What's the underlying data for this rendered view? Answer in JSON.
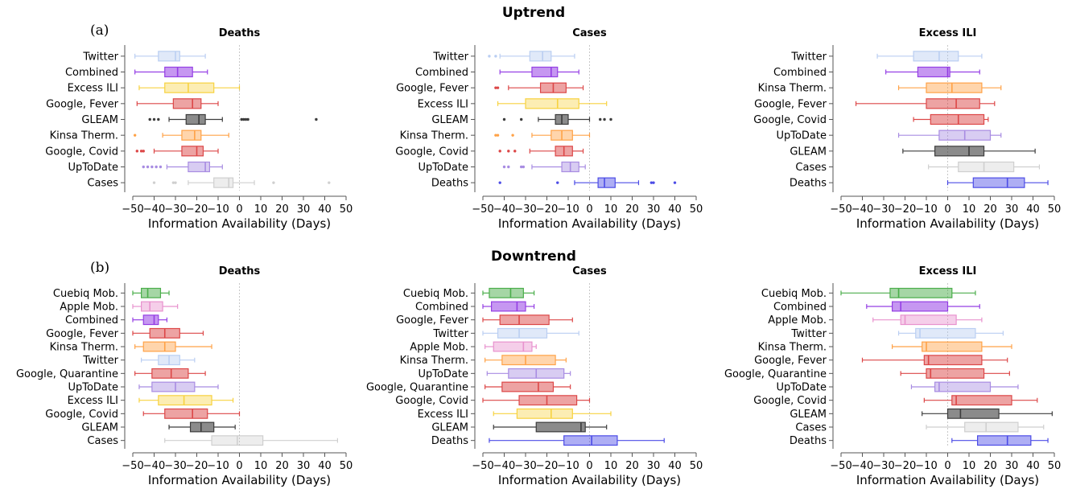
{
  "sections": [
    {
      "title": "Uptrend",
      "panel_label": "(a)"
    },
    {
      "title": "Downtrend",
      "panel_label": "(b)"
    }
  ],
  "chart_data": [
    {
      "type": "boxplot",
      "section": 0,
      "title": "Deaths",
      "xlabel": "Information Availability (Days)",
      "xlim": [
        -50,
        50
      ],
      "xticks": [
        -50,
        -40,
        -30,
        -20,
        -10,
        0,
        10,
        20,
        30,
        40,
        50
      ],
      "categories": [
        {
          "name": "Twitter",
          "color": "#a9c3ef",
          "alpha": 0.45,
          "whislo": -49,
          "q1": -38,
          "med": -30,
          "q3": -28,
          "whishi": -16,
          "outliers": []
        },
        {
          "name": "Combined",
          "color": "#8a2be2",
          "alpha": 0.55,
          "whislo": -49,
          "q1": -35,
          "med": -29,
          "q3": -22,
          "whishi": -15,
          "outliers": []
        },
        {
          "name": "Excess ILI",
          "color": "#f5c400",
          "alpha": 0.4,
          "whislo": -47,
          "q1": -35,
          "med": -24,
          "q3": -12,
          "whishi": 0,
          "outliers": []
        },
        {
          "name": "Google, Fever",
          "color": "#d62728",
          "alpha": 0.5,
          "whislo": -48,
          "q1": -31,
          "med": -22,
          "q3": -18,
          "whishi": -10,
          "outliers": []
        },
        {
          "name": "GLEAM",
          "color": "#333333",
          "alpha": 0.6,
          "whislo": -33,
          "q1": -25,
          "med": -19,
          "q3": -16,
          "whishi": -8,
          "outliers": [
            -42,
            -40,
            -38,
            1,
            2,
            3,
            4,
            36
          ]
        },
        {
          "name": "Kinsa Therm.",
          "color": "#ff8c1a",
          "alpha": 0.45,
          "whislo": -36,
          "q1": -27,
          "med": -21,
          "q3": -18,
          "whishi": -5,
          "outliers": [
            -49
          ]
        },
        {
          "name": "Google, Covid",
          "color": "#d62728",
          "alpha": 0.5,
          "whislo": -40,
          "q1": -27,
          "med": -20,
          "q3": -17,
          "whishi": -10,
          "outliers": [
            -48,
            -46,
            -45
          ]
        },
        {
          "name": "UpToDate",
          "color": "#9370db",
          "alpha": 0.45,
          "whislo": -34,
          "q1": -24,
          "med": -16,
          "q3": -14,
          "whishi": -8,
          "outliers": [
            -45,
            -43,
            -41,
            -39,
            -37
          ]
        },
        {
          "name": "Cases",
          "color": "#c0c0c0",
          "alpha": 0.4,
          "whislo": -24,
          "q1": -12,
          "med": -5,
          "q3": -3,
          "whishi": 7,
          "outliers": [
            -40,
            -31,
            -30,
            16,
            42
          ]
        }
      ]
    },
    {
      "type": "boxplot",
      "section": 0,
      "title": "Cases",
      "xlabel": "Information Availability (Days)",
      "xlim": [
        -50,
        50
      ],
      "xticks": [
        -50,
        -40,
        -30,
        -20,
        -10,
        0,
        10,
        20,
        30,
        40,
        50
      ],
      "categories": [
        {
          "name": "Twitter",
          "color": "#a9c3ef",
          "alpha": 0.45,
          "whislo": -42,
          "q1": -28,
          "med": -22,
          "q3": -18,
          "whishi": -7,
          "outliers": [
            -47,
            -44
          ]
        },
        {
          "name": "Combined",
          "color": "#8a2be2",
          "alpha": 0.55,
          "whislo": -42,
          "q1": -27,
          "med": -18,
          "q3": -15,
          "whishi": -5,
          "outliers": []
        },
        {
          "name": "Google, Fever",
          "color": "#d62728",
          "alpha": 0.5,
          "whislo": -38,
          "q1": -23,
          "med": -17,
          "q3": -11,
          "whishi": -3,
          "outliers": [
            -44,
            -43
          ]
        },
        {
          "name": "Excess ILI",
          "color": "#f5c400",
          "alpha": 0.4,
          "whislo": -43,
          "q1": -30,
          "med": -15,
          "q3": -5,
          "whishi": 8,
          "outliers": []
        },
        {
          "name": "GLEAM",
          "color": "#333333",
          "alpha": 0.6,
          "whislo": -24,
          "q1": -16,
          "med": -13,
          "q3": -10,
          "whishi": 0,
          "outliers": [
            -40,
            -32,
            5,
            7,
            10
          ]
        },
        {
          "name": "Kinsa Therm.",
          "color": "#ff8c1a",
          "alpha": 0.45,
          "whislo": -27,
          "q1": -18,
          "med": -13,
          "q3": -8,
          "whishi": 0,
          "outliers": [
            -44,
            -43,
            -36
          ]
        },
        {
          "name": "Google, Covid",
          "color": "#d62728",
          "alpha": 0.5,
          "whislo": -28,
          "q1": -16,
          "med": -12,
          "q3": -8,
          "whishi": -3,
          "outliers": [
            -42,
            -38,
            -35
          ]
        },
        {
          "name": "UpToDate",
          "color": "#9370db",
          "alpha": 0.45,
          "whislo": -27,
          "q1": -13,
          "med": -9,
          "q3": -5,
          "whishi": -2,
          "outliers": [
            -40,
            -38,
            -32,
            -31
          ]
        },
        {
          "name": "Deaths",
          "color": "#2020e0",
          "alpha": 0.45,
          "whislo": -7,
          "q1": 4,
          "med": 7,
          "q3": 12,
          "whishi": 23,
          "outliers": [
            -42,
            -15,
            29,
            30,
            40
          ]
        }
      ]
    },
    {
      "type": "boxplot",
      "section": 0,
      "title": "Excess ILI",
      "xlabel": "Information Availability (Days)",
      "xlim": [
        -50,
        50
      ],
      "xticks": [
        -50,
        -40,
        -30,
        -20,
        -10,
        0,
        10,
        20,
        30,
        40,
        50
      ],
      "categories": [
        {
          "name": "Twitter",
          "color": "#a9c3ef",
          "alpha": 0.45,
          "whislo": -33,
          "q1": -16,
          "med": -4,
          "q3": 5,
          "whishi": 16,
          "outliers": []
        },
        {
          "name": "Combined",
          "color": "#8a2be2",
          "alpha": 0.55,
          "whislo": -29,
          "q1": -14,
          "med": 0,
          "q3": 1,
          "whishi": 15,
          "outliers": []
        },
        {
          "name": "Kinsa Therm.",
          "color": "#ff8c1a",
          "alpha": 0.45,
          "whislo": -23,
          "q1": -10,
          "med": 2,
          "q3": 16,
          "whishi": 25,
          "outliers": []
        },
        {
          "name": "Google, Fever",
          "color": "#d62728",
          "alpha": 0.5,
          "whislo": -43,
          "q1": -10,
          "med": 4,
          "q3": 15,
          "whishi": 22,
          "outliers": []
        },
        {
          "name": "Google, Covid",
          "color": "#d62728",
          "alpha": 0.5,
          "whislo": -16,
          "q1": -8,
          "med": 5,
          "q3": 17,
          "whishi": 19,
          "outliers": []
        },
        {
          "name": "UpToDate",
          "color": "#9370db",
          "alpha": 0.45,
          "whislo": -23,
          "q1": -4,
          "med": 8,
          "q3": 20,
          "whishi": 25,
          "outliers": []
        },
        {
          "name": "GLEAM",
          "color": "#333333",
          "alpha": 0.6,
          "whislo": -21,
          "q1": -6,
          "med": 10,
          "q3": 17,
          "whishi": 41,
          "outliers": []
        },
        {
          "name": "Cases",
          "color": "#c0c0c0",
          "alpha": 0.4,
          "whislo": -9,
          "q1": 5,
          "med": 17,
          "q3": 31,
          "whishi": 43,
          "outliers": []
        },
        {
          "name": "Deaths",
          "color": "#2020e0",
          "alpha": 0.45,
          "whislo": 0,
          "q1": 12,
          "med": 28,
          "q3": 36,
          "whishi": 47,
          "outliers": []
        }
      ]
    },
    {
      "type": "boxplot",
      "section": 1,
      "title": "Deaths",
      "xlabel": "Information Availability (Days)",
      "xlim": [
        -50,
        50
      ],
      "xticks": [
        -50,
        -40,
        -30,
        -20,
        -10,
        0,
        10,
        20,
        30,
        40,
        50
      ],
      "categories": [
        {
          "name": "Cuebiq Mob.",
          "color": "#2ca02c",
          "alpha": 0.5,
          "whislo": -50,
          "q1": -46,
          "med": -43,
          "q3": -37,
          "whishi": -33,
          "outliers": []
        },
        {
          "name": "Apple Mob.",
          "color": "#e377c2",
          "alpha": 0.45,
          "whislo": -50,
          "q1": -46,
          "med": -42,
          "q3": -36,
          "whishi": -29,
          "outliers": []
        },
        {
          "name": "Combined",
          "color": "#8a2be2",
          "alpha": 0.55,
          "whislo": -50,
          "q1": -45,
          "med": -40,
          "q3": -38,
          "whishi": -34,
          "outliers": []
        },
        {
          "name": "Google, Fever",
          "color": "#d62728",
          "alpha": 0.5,
          "whislo": -50,
          "q1": -42,
          "med": -35,
          "q3": -28,
          "whishi": -17,
          "outliers": []
        },
        {
          "name": "Kinsa Therm.",
          "color": "#ff8c1a",
          "alpha": 0.45,
          "whislo": -49,
          "q1": -45,
          "med": -35,
          "q3": -30,
          "whishi": -13,
          "outliers": []
        },
        {
          "name": "Twitter",
          "color": "#a9c3ef",
          "alpha": 0.45,
          "whislo": -46,
          "q1": -38,
          "med": -33,
          "q3": -28,
          "whishi": -21,
          "outliers": []
        },
        {
          "name": "Google, Quarantine",
          "color": "#d62728",
          "alpha": 0.5,
          "whislo": -49,
          "q1": -41,
          "med": -32,
          "q3": -24,
          "whishi": -16,
          "outliers": []
        },
        {
          "name": "UpToDate",
          "color": "#9370db",
          "alpha": 0.45,
          "whislo": -47,
          "q1": -41,
          "med": -30,
          "q3": -21,
          "whishi": -10,
          "outliers": []
        },
        {
          "name": "Excess ILI",
          "color": "#f5c400",
          "alpha": 0.4,
          "whislo": -47,
          "q1": -38,
          "med": -26,
          "q3": -13,
          "whishi": -3,
          "outliers": []
        },
        {
          "name": "Google, Covid",
          "color": "#d62728",
          "alpha": 0.5,
          "whislo": -45,
          "q1": -35,
          "med": -22,
          "q3": -15,
          "whishi": 0,
          "outliers": []
        },
        {
          "name": "GLEAM",
          "color": "#333333",
          "alpha": 0.6,
          "whislo": -33,
          "q1": -23,
          "med": -18,
          "q3": -12,
          "whishi": -2,
          "outliers": []
        },
        {
          "name": "Cases",
          "color": "#c0c0c0",
          "alpha": 0.4,
          "whislo": -35,
          "q1": -13,
          "med": -1,
          "q3": 11,
          "whishi": 46,
          "outliers": []
        }
      ]
    },
    {
      "type": "boxplot",
      "section": 1,
      "title": "Cases",
      "xlabel": "Information Availability (Days)",
      "xlim": [
        -50,
        50
      ],
      "xticks": [
        -50,
        -40,
        -30,
        -20,
        -10,
        0,
        10,
        20,
        30,
        40,
        50
      ],
      "categories": [
        {
          "name": "Cuebiq Mob.",
          "color": "#2ca02c",
          "alpha": 0.5,
          "whislo": -50,
          "q1": -47,
          "med": -37,
          "q3": -31,
          "whishi": -26,
          "outliers": []
        },
        {
          "name": "Combined",
          "color": "#8a2be2",
          "alpha": 0.55,
          "whislo": -50,
          "q1": -46,
          "med": -34,
          "q3": -30,
          "whishi": -26,
          "outliers": []
        },
        {
          "name": "Google, Fever",
          "color": "#d62728",
          "alpha": 0.5,
          "whislo": -50,
          "q1": -42,
          "med": -33,
          "q3": -19,
          "whishi": -8,
          "outliers": []
        },
        {
          "name": "Twitter",
          "color": "#a9c3ef",
          "alpha": 0.45,
          "whislo": -50,
          "q1": -43,
          "med": -33,
          "q3": -20,
          "whishi": -5,
          "outliers": []
        },
        {
          "name": "Apple Mob.",
          "color": "#e377c2",
          "alpha": 0.45,
          "whislo": -49,
          "q1": -45,
          "med": -31,
          "q3": -27,
          "whishi": -25,
          "outliers": []
        },
        {
          "name": "Kinsa Therm.",
          "color": "#ff8c1a",
          "alpha": 0.45,
          "whislo": -49,
          "q1": -41,
          "med": -30,
          "q3": -16,
          "whishi": -11,
          "outliers": []
        },
        {
          "name": "UpToDate",
          "color": "#9370db",
          "alpha": 0.45,
          "whislo": -48,
          "q1": -38,
          "med": -25,
          "q3": -12,
          "whishi": -9,
          "outliers": []
        },
        {
          "name": "Google, Quarantine",
          "color": "#d62728",
          "alpha": 0.5,
          "whislo": -49,
          "q1": -41,
          "med": -24,
          "q3": -17,
          "whishi": -9,
          "outliers": []
        },
        {
          "name": "Google, Covid",
          "color": "#d62728",
          "alpha": 0.5,
          "whislo": -50,
          "q1": -33,
          "med": -20,
          "q3": -6,
          "whishi": 0,
          "outliers": []
        },
        {
          "name": "Excess ILI",
          "color": "#f5c400",
          "alpha": 0.4,
          "whislo": -45,
          "q1": -34,
          "med": -18,
          "q3": -8,
          "whishi": 10,
          "outliers": []
        },
        {
          "name": "GLEAM",
          "color": "#333333",
          "alpha": 0.6,
          "whislo": -45,
          "q1": -25,
          "med": -4,
          "q3": -2,
          "whishi": 8,
          "outliers": []
        },
        {
          "name": "Deaths",
          "color": "#2020e0",
          "alpha": 0.45,
          "whislo": -47,
          "q1": -12,
          "med": 1,
          "q3": 13,
          "whishi": 35,
          "outliers": []
        }
      ]
    },
    {
      "type": "boxplot",
      "section": 1,
      "title": "Excess ILI",
      "xlabel": "Information Availability (Days)",
      "xlim": [
        -50,
        50
      ],
      "xticks": [
        -50,
        -40,
        -30,
        -20,
        -10,
        0,
        10,
        20,
        30,
        40,
        50
      ],
      "categories": [
        {
          "name": "Cuebiq Mob.",
          "color": "#2ca02c",
          "alpha": 0.5,
          "whislo": -50,
          "q1": -27,
          "med": -23,
          "q3": 2,
          "whishi": 13,
          "outliers": []
        },
        {
          "name": "Combined",
          "color": "#8a2be2",
          "alpha": 0.55,
          "whislo": -38,
          "q1": -26,
          "med": -22,
          "q3": 0,
          "whishi": 15,
          "outliers": []
        },
        {
          "name": "Apple Mob.",
          "color": "#e377c2",
          "alpha": 0.45,
          "whislo": -35,
          "q1": -22,
          "med": -20,
          "q3": 4,
          "whishi": 16,
          "outliers": []
        },
        {
          "name": "Twitter",
          "color": "#a9c3ef",
          "alpha": 0.45,
          "whislo": -23,
          "q1": -15,
          "med": -13,
          "q3": 13,
          "whishi": 26,
          "outliers": []
        },
        {
          "name": "Kinsa Therm.",
          "color": "#ff8c1a",
          "alpha": 0.45,
          "whislo": -26,
          "q1": -12,
          "med": -10,
          "q3": 16,
          "whishi": 30,
          "outliers": []
        },
        {
          "name": "Google, Fever",
          "color": "#d62728",
          "alpha": 0.5,
          "whislo": -40,
          "q1": -11,
          "med": -9,
          "q3": 16,
          "whishi": 28,
          "outliers": []
        },
        {
          "name": "Google, Quarantine",
          "color": "#d62728",
          "alpha": 0.5,
          "whislo": -22,
          "q1": -10,
          "med": -8,
          "q3": 17,
          "whishi": 29,
          "outliers": []
        },
        {
          "name": "UpToDate",
          "color": "#9370db",
          "alpha": 0.45,
          "whislo": -17,
          "q1": -6,
          "med": -4,
          "q3": 20,
          "whishi": 33,
          "outliers": []
        },
        {
          "name": "Google, Covid",
          "color": "#d62728",
          "alpha": 0.5,
          "whislo": -11,
          "q1": 2,
          "med": 4,
          "q3": 30,
          "whishi": 42,
          "outliers": []
        },
        {
          "name": "GLEAM",
          "color": "#333333",
          "alpha": 0.6,
          "whislo": -12,
          "q1": 0,
          "med": 6,
          "q3": 24,
          "whishi": 49,
          "outliers": []
        },
        {
          "name": "Cases",
          "color": "#c0c0c0",
          "alpha": 0.4,
          "whislo": -10,
          "q1": 8,
          "med": 18,
          "q3": 33,
          "whishi": 45,
          "outliers": []
        },
        {
          "name": "Deaths",
          "color": "#2020e0",
          "alpha": 0.45,
          "whislo": 2,
          "q1": 14,
          "med": 28,
          "q3": 39,
          "whishi": 47,
          "outliers": []
        }
      ]
    }
  ]
}
